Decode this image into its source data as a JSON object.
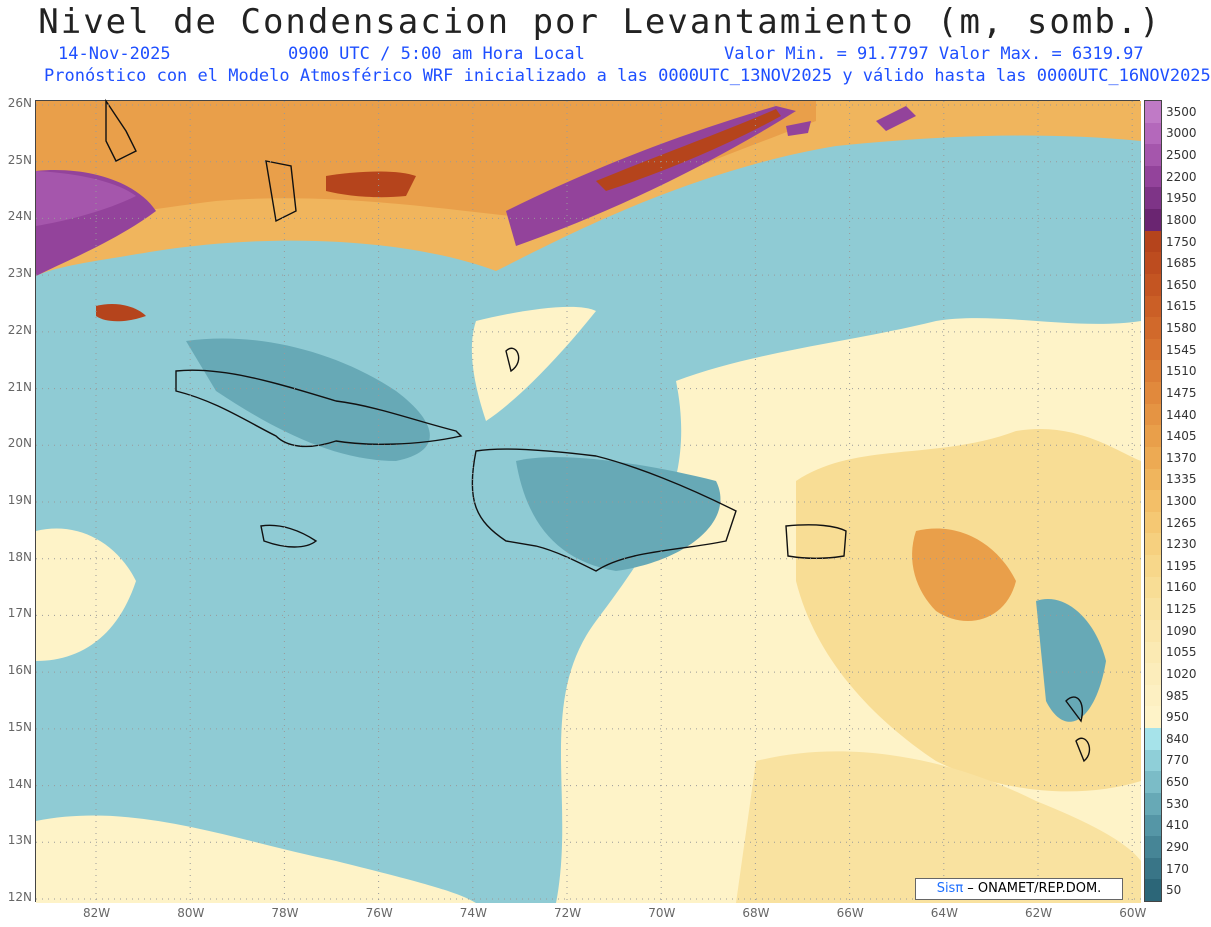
{
  "header": {
    "title": "Nivel de Condensacion por Levantamiento (m, somb.)",
    "date": "14-Nov-2025",
    "time": "0900 UTC / 5:00 am Hora Local",
    "min_max": "Valor Min. = 91.7797  Valor Max. = 6319.97",
    "model_info": "Pronóstico con el Modelo Atmosférico WRF inicializado a las 0000UTC_13NOV2025 y válido hasta las  0000UTC_16NOV2025"
  },
  "map": {
    "lat_labels": [
      "26N",
      "25N",
      "24N",
      "23N",
      "22N",
      "21N",
      "20N",
      "19N",
      "18N",
      "17N",
      "16N",
      "15N",
      "14N",
      "13N",
      "12N"
    ],
    "lon_labels": [
      "82W",
      "80W",
      "78W",
      "76W",
      "74W",
      "72W",
      "70W",
      "68W",
      "66W",
      "64W",
      "62W",
      "60W"
    ]
  },
  "legend": {
    "labels": [
      "3500",
      "3000",
      "2500",
      "2200",
      "1950",
      "1800",
      "1750",
      "1685",
      "1650",
      "1615",
      "1580",
      "1545",
      "1510",
      "1475",
      "1440",
      "1405",
      "1370",
      "1335",
      "1300",
      "1265",
      "1230",
      "1195",
      "1160",
      "1125",
      "1090",
      "1055",
      "1020",
      "985",
      "950",
      "840",
      "770",
      "650",
      "530",
      "410",
      "290",
      "170",
      "50"
    ],
    "colors": [
      "#c07ac6",
      "#b468bb",
      "#a556ac",
      "#93439b",
      "#7e3487",
      "#6a2571",
      "#b5441c",
      "#bd4c1f",
      "#c45522",
      "#cb5f26",
      "#d1692b",
      "#d77330",
      "#dc7e36",
      "#e1893c",
      "#e59443",
      "#e99f4a",
      "#edaa53",
      "#f0b55d",
      "#f3bf68",
      "#f5c873",
      "#f6d07f",
      "#f7d78a",
      "#f8dd95",
      "#f9e2a0",
      "#fae6aa",
      "#fbeab3",
      "#fcedbb",
      "#fdf0c2",
      "#fef3c8",
      "#a6e3ea",
      "#8fcfd8",
      "#7bbcc7",
      "#67a9b6",
      "#5596a6",
      "#468596",
      "#397587",
      "#2c6678"
    ]
  },
  "credit": {
    "brand": "Sisπ",
    "text": " – ONAMET/REP.DOM."
  }
}
